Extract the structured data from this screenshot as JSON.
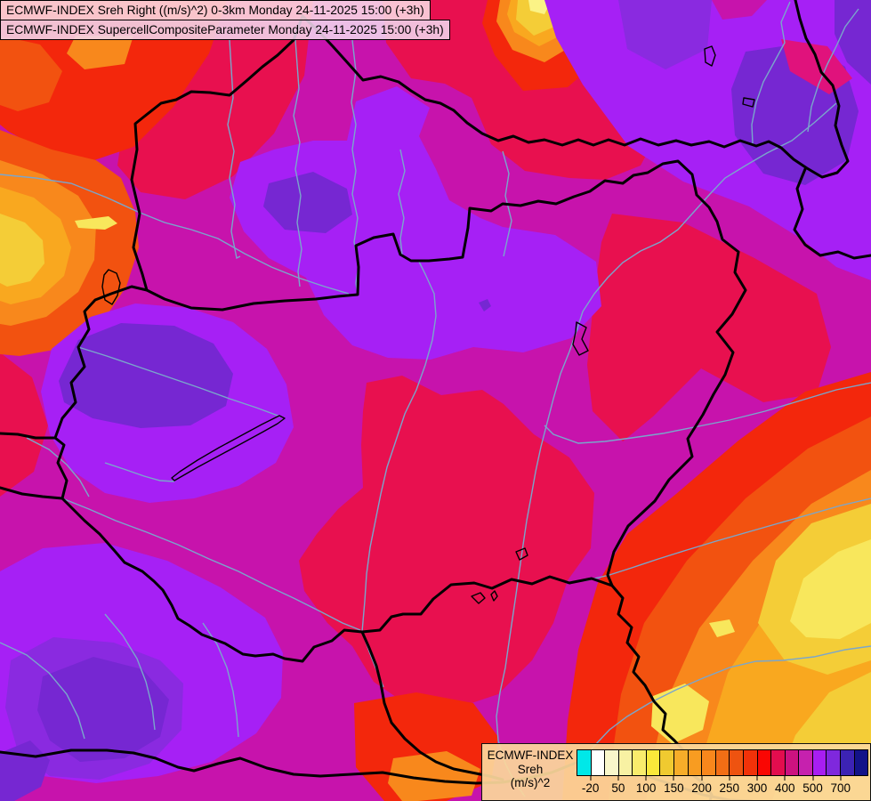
{
  "titles": {
    "line1": "ECMWF-INDEX Sreh Right ((m/s)^2) 0-3km Monday 24-11-2025 15:00 (+3h)",
    "line2": "ECMWF-INDEX SupercellCompositeParameter Monday 24-11-2025 15:00 (+3h)"
  },
  "legend": {
    "source": "ECMWF-INDEX",
    "parameter": "Sreh",
    "unit": "(m/s)^2",
    "swatches": [
      "#00e8e8",
      "#ffffff",
      "#f9f7cb",
      "#f8f1a3",
      "#f9ec6c",
      "#fae83a",
      "#f0ca30",
      "#f7ad29",
      "#f89c21",
      "#f8871c",
      "#f26e15",
      "#ee5310",
      "#f23209",
      "#fa0603",
      "#e30d4e",
      "#cd1280",
      "#c621ae",
      "#a81ef2",
      "#7f28dd",
      "#3c23b4",
      "#131389"
    ],
    "tick_labels": [
      "-20",
      "50",
      "100",
      "150",
      "200",
      "250",
      "300",
      "400",
      "500",
      "700"
    ],
    "tick_boundary_indices": [
      1,
      3,
      5,
      7,
      9,
      11,
      13,
      15,
      17,
      19
    ],
    "swatch_count": 21
  },
  "map": {
    "palette": {
      "magenta": "#c713ac",
      "crimson": "#e8104f",
      "deepPink": "#e0127c",
      "red": "#f3270c",
      "orangeRed": "#f25210",
      "orange": "#f8881c",
      "orangeYellow": "#f9a81f",
      "gold": "#f4cd37",
      "yellow": "#f8e75c",
      "paleYellow": "#fbf386",
      "purple": "#a620f5",
      "violetMid": "#8a2ae0",
      "violetDark": "#7627d2",
      "borderBlack": "#000000",
      "riverBlue": "#7aa6cc"
    }
  }
}
